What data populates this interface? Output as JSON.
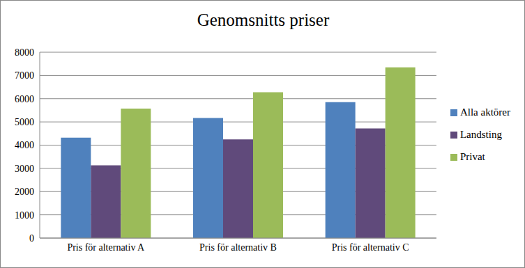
{
  "chart_data": {
    "type": "bar",
    "title": "Genomsnitts priser",
    "categories": [
      "Pris för alternativ A",
      "Pris för alternativ B",
      "Pris för alternativ C"
    ],
    "series": [
      {
        "name": "Alla aktörer",
        "color": "#4f81bd",
        "values": [
          4320,
          5170,
          5850
        ]
      },
      {
        "name": "Landsting",
        "color": "#604a7b",
        "values": [
          3130,
          4250,
          4720
        ]
      },
      {
        "name": "Privat",
        "color": "#9bbb59",
        "values": [
          5570,
          6280,
          7350
        ]
      }
    ],
    "ylim": [
      0,
      8000
    ],
    "yticks": [
      0,
      1000,
      2000,
      3000,
      4000,
      5000,
      6000,
      7000,
      8000
    ],
    "grid": true,
    "legend": "right"
  }
}
